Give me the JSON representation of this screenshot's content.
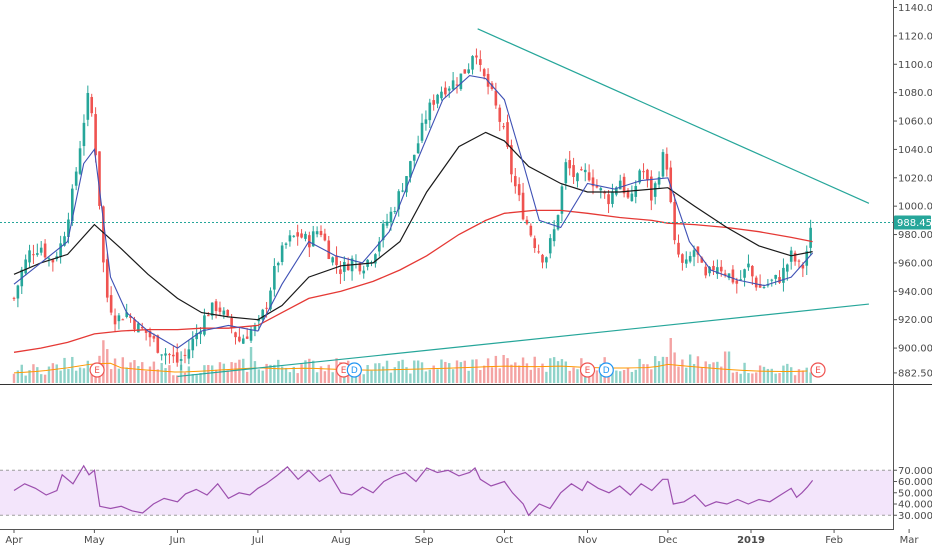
{
  "chart_data": [
    {
      "type": "candlestick",
      "title": "",
      "price_label": "988.45",
      "price_value": 988.45,
      "ylim": [
        872,
        1140
      ],
      "y_ticks": [
        "882.50",
        "900.00",
        "920.00",
        "940.00",
        "960.00",
        "980.00",
        "1000.00",
        "1020.00",
        "1040.00",
        "1060.00",
        "1080.00",
        "1100.00",
        "1120.00",
        "1140.00"
      ],
      "x_labels": [
        {
          "text": "Apr",
          "day": 0
        },
        {
          "text": "May",
          "day": 30
        },
        {
          "text": "Jun",
          "day": 61
        },
        {
          "text": "Jul",
          "day": 91
        },
        {
          "text": "Aug",
          "day": 122
        },
        {
          "text": "Sep",
          "day": 153
        },
        {
          "text": "Oct",
          "day": 183
        },
        {
          "text": "Nov",
          "day": 214
        },
        {
          "text": "Dec",
          "day": 244
        },
        {
          "text": "2019",
          "day": 275
        },
        {
          "text": "Feb",
          "day": 306
        },
        {
          "text": "Mar",
          "day": 334
        }
      ],
      "close_path": [
        [
          0,
          935
        ],
        [
          3,
          955
        ],
        [
          6,
          968
        ],
        [
          10,
          972
        ],
        [
          14,
          960
        ],
        [
          18,
          975
        ],
        [
          22,
          1010
        ],
        [
          26,
          1060
        ],
        [
          28,
          1080
        ],
        [
          30,
          1050
        ],
        [
          32,
          1000
        ],
        [
          34,
          940
        ],
        [
          38,
          920
        ],
        [
          42,
          925
        ],
        [
          46,
          915
        ],
        [
          50,
          910
        ],
        [
          54,
          900
        ],
        [
          58,
          895
        ],
        [
          61,
          890
        ],
        [
          64,
          895
        ],
        [
          68,
          910
        ],
        [
          72,
          925
        ],
        [
          76,
          930
        ],
        [
          80,
          918
        ],
        [
          84,
          905
        ],
        [
          88,
          912
        ],
        [
          91,
          915
        ],
        [
          94,
          930
        ],
        [
          98,
          960
        ],
        [
          102,
          975
        ],
        [
          106,
          980
        ],
        [
          110,
          975
        ],
        [
          114,
          985
        ],
        [
          118,
          965
        ],
        [
          122,
          955
        ],
        [
          126,
          962
        ],
        [
          130,
          958
        ],
        [
          134,
          966
        ],
        [
          138,
          985
        ],
        [
          142,
          1000
        ],
        [
          146,
          1020
        ],
        [
          150,
          1040
        ],
        [
          154,
          1065
        ],
        [
          158,
          1080
        ],
        [
          162,
          1085
        ],
        [
          166,
          1090
        ],
        [
          170,
          1100
        ],
        [
          172,
          1115
        ],
        [
          174,
          1095
        ],
        [
          178,
          1080
        ],
        [
          183,
          1050
        ],
        [
          186,
          1020
        ],
        [
          190,
          995
        ],
        [
          194,
          975
        ],
        [
          198,
          962
        ],
        [
          202,
          985
        ],
        [
          206,
          1030
        ],
        [
          210,
          1018
        ],
        [
          214,
          1024
        ],
        [
          218,
          1012
        ],
        [
          222,
          1005
        ],
        [
          226,
          1020
        ],
        [
          230,
          1000
        ],
        [
          234,
          1030
        ],
        [
          238,
          1005
        ],
        [
          242,
          1035
        ],
        [
          244,
          1028
        ],
        [
          246,
          975
        ],
        [
          250,
          955
        ],
        [
          254,
          970
        ],
        [
          258,
          948
        ],
        [
          262,
          960
        ],
        [
          266,
          953
        ],
        [
          270,
          945
        ],
        [
          274,
          958
        ],
        [
          275,
          952
        ],
        [
          278,
          942
        ],
        [
          282,
          946
        ],
        [
          286,
          950
        ],
        [
          290,
          965
        ],
        [
          294,
          955
        ],
        [
          296,
          970
        ],
        [
          298,
          988
        ]
      ],
      "ema_fast_path": [
        [
          0,
          945
        ],
        [
          10,
          960
        ],
        [
          20,
          975
        ],
        [
          26,
          1030
        ],
        [
          30,
          1040
        ],
        [
          32,
          1010
        ],
        [
          36,
          950
        ],
        [
          42,
          925
        ],
        [
          50,
          912
        ],
        [
          61,
          900
        ],
        [
          70,
          912
        ],
        [
          80,
          916
        ],
        [
          91,
          912
        ],
        [
          100,
          945
        ],
        [
          110,
          975
        ],
        [
          120,
          965
        ],
        [
          130,
          960
        ],
        [
          140,
          982
        ],
        [
          150,
          1030
        ],
        [
          160,
          1075
        ],
        [
          170,
          1092
        ],
        [
          176,
          1090
        ],
        [
          183,
          1075
        ],
        [
          190,
          1030
        ],
        [
          196,
          990
        ],
        [
          204,
          985
        ],
        [
          214,
          1016
        ],
        [
          224,
          1012
        ],
        [
          234,
          1018
        ],
        [
          244,
          1020
        ],
        [
          252,
          975
        ],
        [
          260,
          955
        ],
        [
          270,
          948
        ],
        [
          280,
          944
        ],
        [
          290,
          950
        ],
        [
          298,
          967
        ]
      ],
      "ema_mid_path": [
        [
          0,
          952
        ],
        [
          10,
          960
        ],
        [
          20,
          966
        ],
        [
          30,
          987
        ],
        [
          40,
          970
        ],
        [
          50,
          952
        ],
        [
          61,
          935
        ],
        [
          70,
          925
        ],
        [
          80,
          922
        ],
        [
          91,
          920
        ],
        [
          100,
          930
        ],
        [
          110,
          950
        ],
        [
          122,
          958
        ],
        [
          134,
          960
        ],
        [
          144,
          975
        ],
        [
          154,
          1010
        ],
        [
          166,
          1042
        ],
        [
          176,
          1052
        ],
        [
          183,
          1046
        ],
        [
          192,
          1028
        ],
        [
          204,
          1016
        ],
        [
          214,
          1010
        ],
        [
          226,
          1010
        ],
        [
          238,
          1012
        ],
        [
          244,
          1013
        ],
        [
          254,
          1000
        ],
        [
          266,
          985
        ],
        [
          278,
          972
        ],
        [
          290,
          965
        ],
        [
          298,
          968
        ]
      ],
      "ma_slow_path": [
        [
          0,
          897
        ],
        [
          10,
          900
        ],
        [
          20,
          904
        ],
        [
          30,
          910
        ],
        [
          40,
          912
        ],
        [
          50,
          913
        ],
        [
          61,
          913
        ],
        [
          70,
          914
        ],
        [
          80,
          914
        ],
        [
          91,
          916
        ],
        [
          100,
          925
        ],
        [
          110,
          935
        ],
        [
          122,
          940
        ],
        [
          134,
          947
        ],
        [
          144,
          955
        ],
        [
          154,
          965
        ],
        [
          166,
          980
        ],
        [
          176,
          990
        ],
        [
          183,
          995
        ],
        [
          194,
          997
        ],
        [
          204,
          997
        ],
        [
          214,
          995
        ],
        [
          226,
          992
        ],
        [
          238,
          990
        ],
        [
          244,
          988
        ],
        [
          254,
          987
        ],
        [
          266,
          985
        ],
        [
          278,
          982
        ],
        [
          290,
          978
        ],
        [
          298,
          975
        ]
      ],
      "trendline_upper": [
        [
          173,
          1125
        ],
        [
          319,
          1002
        ]
      ],
      "trendline_lower": [
        [
          61,
          880
        ],
        [
          319,
          931
        ]
      ],
      "volume_profile": [
        [
          0,
          0.3
        ],
        [
          10,
          0.35
        ],
        [
          20,
          0.45
        ],
        [
          28,
          0.55
        ],
        [
          30,
          0.5
        ],
        [
          34,
          0.65
        ],
        [
          40,
          0.45
        ],
        [
          50,
          0.38
        ],
        [
          61,
          0.32
        ],
        [
          70,
          0.35
        ],
        [
          80,
          0.4
        ],
        [
          91,
          0.45
        ],
        [
          100,
          0.42
        ],
        [
          110,
          0.44
        ],
        [
          122,
          0.4
        ],
        [
          134,
          0.38
        ],
        [
          144,
          0.4
        ],
        [
          154,
          0.42
        ],
        [
          166,
          0.45
        ],
        [
          176,
          0.48
        ],
        [
          183,
          0.5
        ],
        [
          194,
          0.48
        ],
        [
          204,
          0.5
        ],
        [
          214,
          0.46
        ],
        [
          226,
          0.44
        ],
        [
          238,
          0.46
        ],
        [
          244,
          0.55
        ],
        [
          254,
          0.48
        ],
        [
          266,
          0.4
        ],
        [
          278,
          0.35
        ],
        [
          290,
          0.34
        ],
        [
          298,
          0.36
        ]
      ],
      "volume_spikes": [
        [
          33,
          0.95
        ],
        [
          88,
          0.8
        ],
        [
          245,
          1.0
        ],
        [
          266,
          0.7
        ],
        [
          120,
          0.55
        ],
        [
          150,
          0.5
        ],
        [
          200,
          0.55
        ]
      ],
      "events": [
        {
          "label": "E",
          "day": 31
        },
        {
          "label": "E",
          "day": 123
        },
        {
          "label": "D",
          "day": 127
        },
        {
          "label": "E",
          "day": 214
        },
        {
          "label": "D",
          "day": 221
        },
        {
          "label": "E",
          "day": 300
        }
      ]
    },
    {
      "type": "line",
      "title": "",
      "ylim": [
        28,
        75
      ],
      "y_ticks": [
        "30.0000",
        "40.0000",
        "50.0000",
        "60.0000",
        "70.0000"
      ],
      "upper_band": 70,
      "lower_band": 30,
      "rsi_path": [
        [
          0,
          52
        ],
        [
          4,
          58
        ],
        [
          8,
          54
        ],
        [
          12,
          48
        ],
        [
          16,
          52
        ],
        [
          18,
          66
        ],
        [
          22,
          58
        ],
        [
          26,
          74
        ],
        [
          28,
          66
        ],
        [
          30,
          70
        ],
        [
          32,
          38
        ],
        [
          36,
          36
        ],
        [
          40,
          38
        ],
        [
          44,
          34
        ],
        [
          48,
          32
        ],
        [
          52,
          40
        ],
        [
          56,
          45
        ],
        [
          61,
          42
        ],
        [
          64,
          49
        ],
        [
          68,
          53
        ],
        [
          72,
          48
        ],
        [
          76,
          58
        ],
        [
          80,
          45
        ],
        [
          84,
          50
        ],
        [
          88,
          48
        ],
        [
          91,
          54
        ],
        [
          94,
          58
        ],
        [
          98,
          65
        ],
        [
          102,
          73
        ],
        [
          106,
          62
        ],
        [
          110,
          70
        ],
        [
          114,
          60
        ],
        [
          118,
          66
        ],
        [
          122,
          50
        ],
        [
          126,
          48
        ],
        [
          130,
          55
        ],
        [
          134,
          50
        ],
        [
          138,
          60
        ],
        [
          142,
          65
        ],
        [
          146,
          68
        ],
        [
          150,
          60
        ],
        [
          154,
          72
        ],
        [
          158,
          68
        ],
        [
          162,
          70
        ],
        [
          166,
          65
        ],
        [
          170,
          68
        ],
        [
          172,
          72
        ],
        [
          174,
          62
        ],
        [
          178,
          56
        ],
        [
          183,
          60
        ],
        [
          186,
          50
        ],
        [
          190,
          40
        ],
        [
          192,
          30
        ],
        [
          196,
          40
        ],
        [
          200,
          36
        ],
        [
          204,
          50
        ],
        [
          208,
          58
        ],
        [
          212,
          52
        ],
        [
          214,
          60
        ],
        [
          218,
          54
        ],
        [
          222,
          50
        ],
        [
          226,
          56
        ],
        [
          230,
          48
        ],
        [
          234,
          58
        ],
        [
          238,
          52
        ],
        [
          242,
          62
        ],
        [
          244,
          62
        ],
        [
          246,
          40
        ],
        [
          250,
          42
        ],
        [
          254,
          48
        ],
        [
          258,
          38
        ],
        [
          262,
          42
        ],
        [
          266,
          40
        ],
        [
          270,
          44
        ],
        [
          274,
          40
        ],
        [
          278,
          44
        ],
        [
          282,
          42
        ],
        [
          286,
          48
        ],
        [
          290,
          54
        ],
        [
          292,
          46
        ],
        [
          294,
          50
        ],
        [
          296,
          55
        ],
        [
          298,
          61
        ]
      ]
    }
  ]
}
